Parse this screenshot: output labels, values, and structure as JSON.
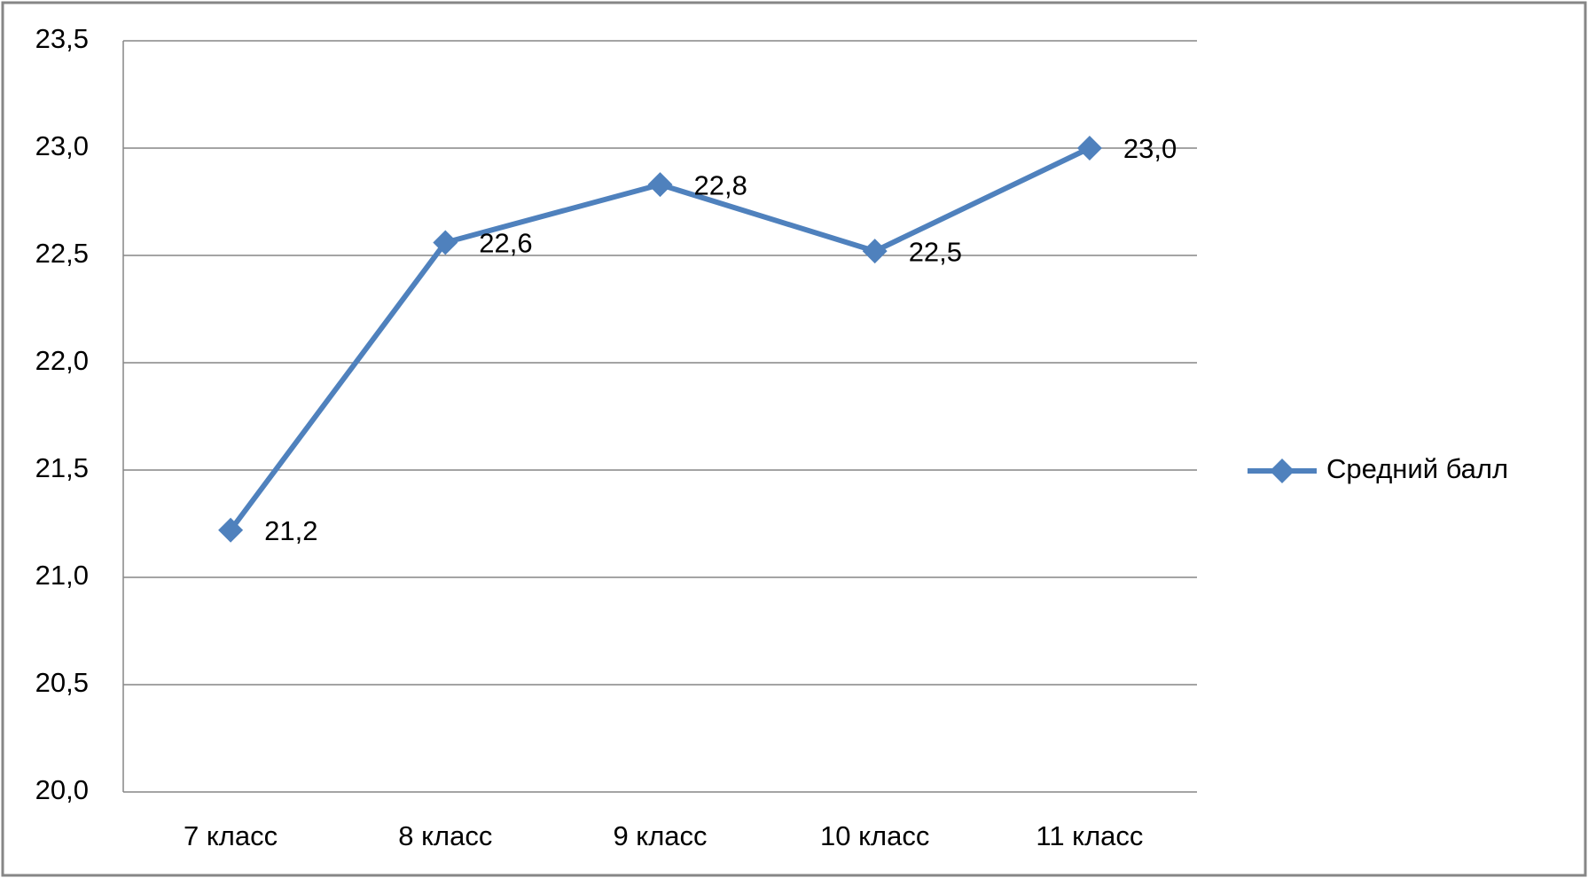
{
  "chart_data": {
    "type": "line",
    "categories": [
      "7 класс",
      "8 класс",
      "9 класс",
      "10 класс",
      "11 класс"
    ],
    "series": [
      {
        "name": "Средний балл",
        "color": "#4f81bd",
        "values": [
          21.22,
          22.56,
          22.83,
          22.52,
          23.0
        ],
        "value_labels": [
          "21,2",
          "22,6",
          "22,8",
          "22,5",
          "23,0"
        ]
      }
    ],
    "ylim": [
      20.0,
      23.5
    ],
    "yticks": [
      {
        "value": 20.0,
        "label": "20,0"
      },
      {
        "value": 20.5,
        "label": "20,5"
      },
      {
        "value": 21.0,
        "label": "21,0"
      },
      {
        "value": 21.5,
        "label": "21,5"
      },
      {
        "value": 22.0,
        "label": "22,0"
      },
      {
        "value": 22.5,
        "label": "22,5"
      },
      {
        "value": 23.0,
        "label": "23,0"
      },
      {
        "value": 23.5,
        "label": "23,5"
      }
    ],
    "grid": true,
    "legend": "right"
  }
}
